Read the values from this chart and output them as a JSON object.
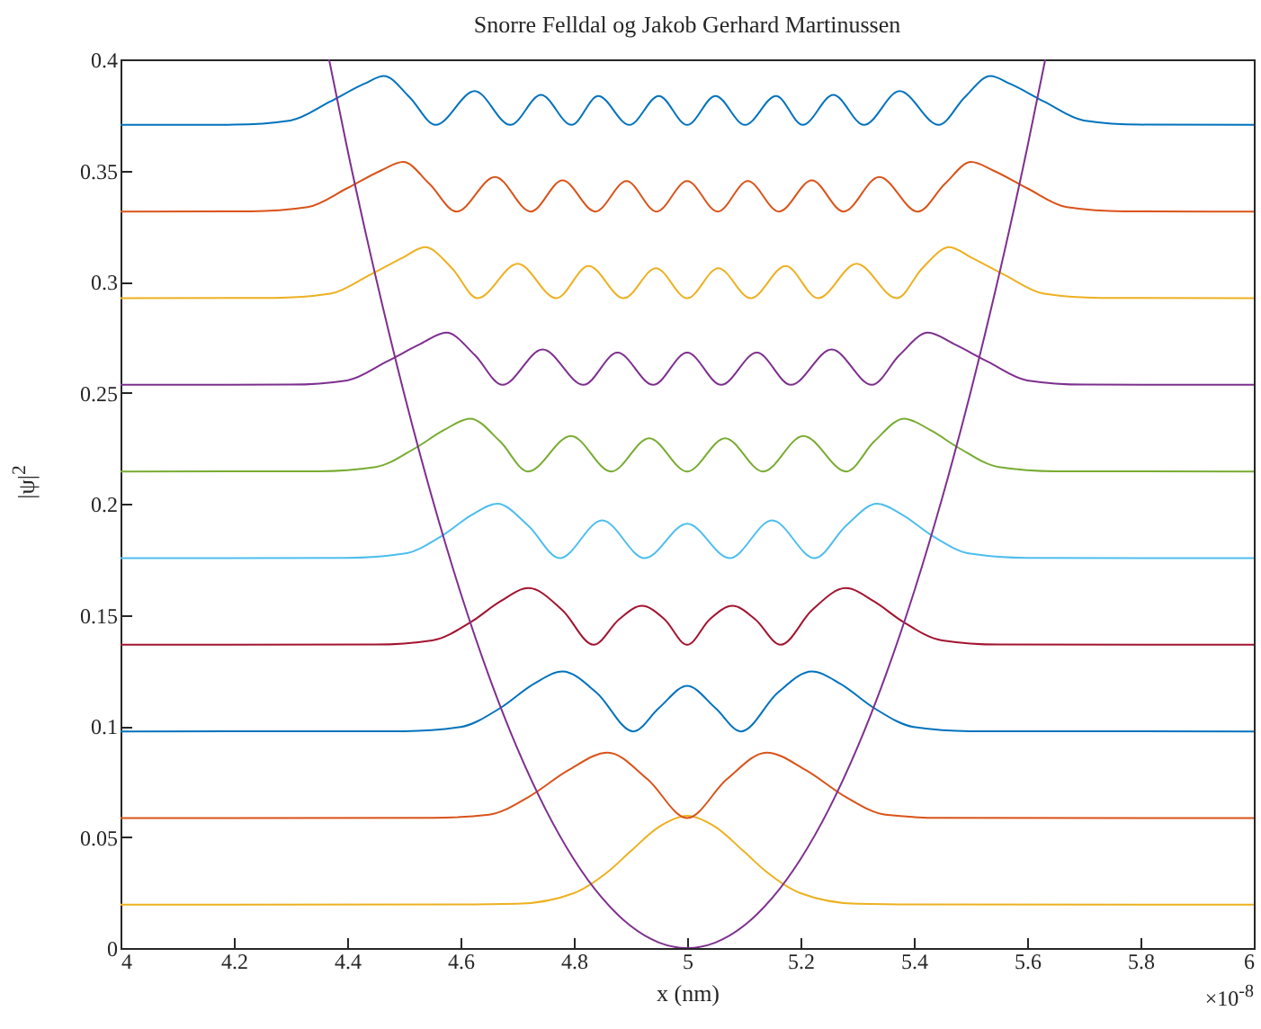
{
  "chart_data": {
    "type": "line",
    "title": "Snorre Felldal og Jakob Gerhard Martinussen",
    "xlabel": "x (nm)",
    "ylabel": "|ψ|$^{2}$",
    "annotations": [
      "×10$^{-8}$"
    ],
    "xlim": [
      4,
      6
    ],
    "xticks": [
      4,
      4.2,
      4.4,
      4.6,
      4.8,
      5,
      5.2,
      5.4,
      5.6,
      5.8,
      6
    ],
    "ylim": [
      0,
      0.4
    ],
    "yticks": [
      0,
      0.05,
      0.1,
      0.15,
      0.2,
      0.25,
      0.3,
      0.35,
      0.4
    ],
    "grid": false,
    "legend": false,
    "marker": "none",
    "line_style": "solid",
    "series": [
      {
        "color": "#edb120",
        "x": [
          4,
          4.6,
          4.7,
          4.8,
          4.86,
          4.9,
          4.95,
          5,
          5.05,
          5.1,
          5.14,
          5.2,
          5.3,
          5.4,
          6
        ],
        "values": [
          0.0195,
          0.0196,
          0.0199,
          0.0247,
          0.0343,
          0.0435,
          0.0545,
          0.0595,
          0.0545,
          0.0435,
          0.0343,
          0.0247,
          0.0199,
          0.0196,
          0.0195
        ]
      },
      {
        "color": "#d95319",
        "x": [
          4,
          4.55,
          4.65,
          4.72,
          4.79,
          4.86,
          4.93,
          5,
          5.07,
          5.14,
          5.21,
          5.28,
          5.35,
          5.45,
          6
        ],
        "values": [
          0.0585,
          0.0586,
          0.06,
          0.068,
          0.08,
          0.088,
          0.076,
          0.0585,
          0.076,
          0.088,
          0.08,
          0.068,
          0.06,
          0.0586,
          0.0585
        ]
      },
      {
        "color": "#0072bd",
        "x": [
          4,
          4.5,
          4.6,
          4.67,
          4.73,
          4.78,
          4.84,
          4.905,
          4.95,
          5,
          5.05,
          5.095,
          5.16,
          5.22,
          5.27,
          5.33,
          5.4,
          5.5,
          6
        ],
        "values": [
          0.0975,
          0.0976,
          0.0995,
          0.108,
          0.119,
          0.1245,
          0.115,
          0.0975,
          0.108,
          0.118,
          0.108,
          0.0975,
          0.115,
          0.1245,
          0.119,
          0.108,
          0.0995,
          0.0976,
          0.0975
        ]
      },
      {
        "color": "#a2142f",
        "x": [
          4,
          4.45,
          4.55,
          4.62,
          4.67,
          4.72,
          4.78,
          4.835,
          4.88,
          4.92,
          4.96,
          5,
          5.04,
          5.08,
          5.12,
          5.165,
          5.22,
          5.28,
          5.33,
          5.38,
          5.45,
          5.55,
          6
        ],
        "values": [
          0.1365,
          0.1366,
          0.1385,
          0.147,
          0.156,
          0.162,
          0.152,
          0.1365,
          0.148,
          0.154,
          0.148,
          0.1365,
          0.148,
          0.154,
          0.148,
          0.1365,
          0.152,
          0.162,
          0.156,
          0.147,
          0.1385,
          0.1366,
          0.1365
        ]
      },
      {
        "color": "#4dbeee",
        "x": [
          4,
          4.4,
          4.5,
          4.57,
          4.62,
          4.665,
          4.72,
          4.775,
          4.85,
          4.925,
          5,
          5.075,
          5.15,
          5.225,
          5.28,
          5.335,
          5.38,
          5.43,
          5.5,
          5.6,
          6
        ],
        "values": [
          0.1755,
          0.1756,
          0.1775,
          0.186,
          0.195,
          0.2,
          0.19,
          0.1755,
          0.1925,
          0.1755,
          0.191,
          0.1755,
          0.1925,
          0.1755,
          0.19,
          0.2,
          0.195,
          0.186,
          0.1775,
          0.1756,
          0.1755
        ]
      },
      {
        "color": "#77ac30",
        "x": [
          4,
          4.35,
          4.45,
          4.52,
          4.57,
          4.617,
          4.67,
          4.719,
          4.795,
          4.866,
          4.933,
          5,
          5.067,
          5.134,
          5.205,
          5.281,
          5.33,
          5.383,
          5.43,
          5.48,
          5.55,
          5.65,
          6
        ],
        "values": [
          0.2145,
          0.2146,
          0.2165,
          0.225,
          0.233,
          0.2383,
          0.228,
          0.2145,
          0.2305,
          0.2145,
          0.2295,
          0.2145,
          0.2295,
          0.2145,
          0.2305,
          0.2145,
          0.228,
          0.2383,
          0.233,
          0.225,
          0.2165,
          0.2146,
          0.2145
        ]
      },
      {
        "color": "#7e2f8e",
        "x": [
          4,
          4.3,
          4.4,
          4.47,
          4.53,
          4.575,
          4.625,
          4.674,
          4.745,
          4.817,
          4.877,
          4.94,
          5,
          5.06,
          5.123,
          5.183,
          5.255,
          5.326,
          5.375,
          5.425,
          5.47,
          5.53,
          5.6,
          5.7,
          6
        ],
        "values": [
          0.2535,
          0.2536,
          0.2555,
          0.264,
          0.272,
          0.277,
          0.267,
          0.2535,
          0.2694,
          0.2535,
          0.268,
          0.2535,
          0.268,
          0.2535,
          0.268,
          0.2535,
          0.2694,
          0.2535,
          0.267,
          0.277,
          0.272,
          0.264,
          0.2555,
          0.2536,
          0.2535
        ]
      },
      {
        "color": "#edb120",
        "x": [
          4,
          4.27,
          4.37,
          4.44,
          4.5,
          4.537,
          4.585,
          4.63,
          4.701,
          4.769,
          4.826,
          4.888,
          4.945,
          5,
          5.055,
          5.112,
          5.174,
          5.231,
          5.299,
          5.37,
          5.415,
          5.463,
          5.5,
          5.56,
          5.63,
          5.73,
          6
        ],
        "values": [
          0.2925,
          0.2926,
          0.2945,
          0.303,
          0.311,
          0.3155,
          0.306,
          0.2925,
          0.308,
          0.2925,
          0.307,
          0.2925,
          0.306,
          0.2925,
          0.306,
          0.2925,
          0.307,
          0.2925,
          0.308,
          0.2925,
          0.306,
          0.3155,
          0.311,
          0.303,
          0.2945,
          0.2926,
          0.2925
        ]
      },
      {
        "color": "#d95319",
        "x": [
          4,
          4.23,
          4.33,
          4.4,
          4.46,
          4.499,
          4.545,
          4.593,
          4.661,
          4.724,
          4.78,
          4.838,
          4.893,
          4.946,
          5,
          5.054,
          5.107,
          5.162,
          5.22,
          5.276,
          5.339,
          5.407,
          5.455,
          5.501,
          5.54,
          5.6,
          5.67,
          5.77,
          6
        ],
        "values": [
          0.3315,
          0.3316,
          0.3335,
          0.342,
          0.35,
          0.3538,
          0.344,
          0.3315,
          0.3471,
          0.3315,
          0.3455,
          0.3315,
          0.3452,
          0.3315,
          0.3452,
          0.3315,
          0.3452,
          0.3315,
          0.3455,
          0.3315,
          0.3471,
          0.3315,
          0.344,
          0.3538,
          0.35,
          0.342,
          0.3335,
          0.3316,
          0.3315
        ]
      },
      {
        "color": "#0072bd",
        "x": [
          4,
          4.2,
          4.3,
          4.37,
          4.43,
          4.465,
          4.51,
          4.556,
          4.625,
          4.688,
          4.742,
          4.796,
          4.843,
          4.898,
          4.95,
          5,
          5.05,
          5.102,
          5.157,
          5.204,
          5.258,
          5.312,
          5.375,
          5.444,
          5.49,
          5.535,
          5.57,
          5.63,
          5.7,
          5.8,
          6
        ],
        "values": [
          0.3705,
          0.3706,
          0.3725,
          0.381,
          0.389,
          0.3925,
          0.383,
          0.3705,
          0.3857,
          0.3705,
          0.384,
          0.3705,
          0.3835,
          0.3705,
          0.3835,
          0.3705,
          0.3835,
          0.3705,
          0.3835,
          0.3705,
          0.384,
          0.3705,
          0.3857,
          0.3705,
          0.383,
          0.3925,
          0.389,
          0.381,
          0.3725,
          0.3706,
          0.3705
        ]
      },
      {
        "color": "#7e2f8e",
        "x": [
          4.368,
          4.4,
          4.45,
          4.5,
          4.55,
          4.6,
          4.65,
          4.7,
          4.75,
          4.8,
          4.85,
          4.9,
          4.95,
          5,
          5.05,
          5.1,
          5.15,
          5.2,
          5.25,
          5.3,
          5.35,
          5.4,
          5.45,
          5.5,
          5.55,
          5.6,
          5.632
        ],
        "values": [
          0.4,
          0.36,
          0.3025,
          0.25,
          0.2025,
          0.16,
          0.1225,
          0.09,
          0.0625,
          0.04,
          0.0225,
          0.01,
          0.0025,
          0,
          0.0025,
          0.01,
          0.0225,
          0.04,
          0.0625,
          0.09,
          0.1225,
          0.16,
          0.2025,
          0.25,
          0.3025,
          0.36,
          0.4
        ]
      }
    ]
  }
}
